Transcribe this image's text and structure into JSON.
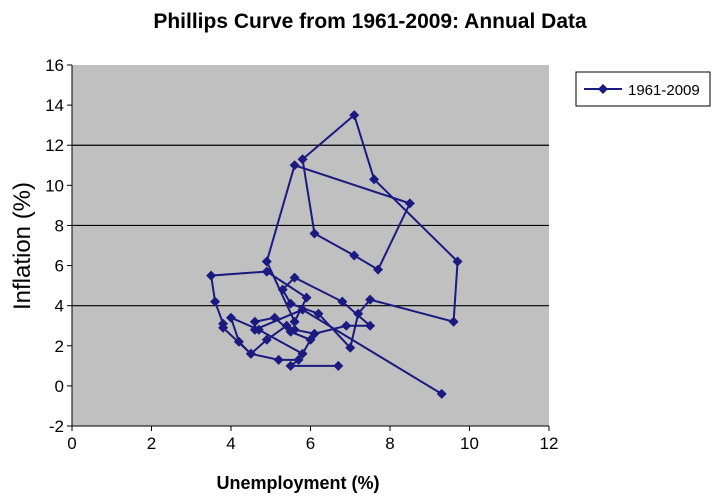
{
  "chart_data": {
    "type": "line",
    "title": "Phillips Curve from 1961-2009: Annual Data",
    "xlabel": "Unemployment (%)",
    "ylabel": "Inflation (%)",
    "xlim": [
      0,
      12
    ],
    "ylim": [
      -2,
      16
    ],
    "xticks": [
      "0",
      "2",
      "4",
      "6",
      "8",
      "10",
      "12"
    ],
    "yticks": [
      "-2",
      "0",
      "2",
      "4",
      "6",
      "8",
      "10",
      "12",
      "14",
      "16"
    ],
    "gridlines_y": [
      4,
      8,
      12
    ],
    "legend_position": "right",
    "series": [
      {
        "name": "1961-2009",
        "color": "#1a1a80",
        "marker": "diamond",
        "points": [
          [
            6.7,
            1.0
          ],
          [
            5.5,
            1.0
          ],
          [
            5.7,
            1.3
          ],
          [
            5.2,
            1.3
          ],
          [
            4.5,
            1.6
          ],
          [
            3.8,
            2.9
          ],
          [
            3.8,
            3.1
          ],
          [
            3.6,
            4.2
          ],
          [
            3.5,
            5.5
          ],
          [
            4.9,
            5.7
          ],
          [
            5.9,
            4.4
          ],
          [
            5.6,
            3.2
          ],
          [
            4.9,
            6.2
          ],
          [
            5.6,
            11.0
          ],
          [
            8.5,
            9.1
          ],
          [
            7.7,
            5.8
          ],
          [
            7.1,
            6.5
          ],
          [
            6.1,
            7.6
          ],
          [
            5.8,
            11.3
          ],
          [
            7.1,
            13.5
          ],
          [
            7.6,
            10.3
          ],
          [
            9.7,
            6.2
          ],
          [
            9.6,
            3.2
          ],
          [
            7.5,
            4.3
          ],
          [
            7.2,
            3.6
          ],
          [
            7.0,
            1.9
          ],
          [
            6.2,
            3.6
          ],
          [
            5.5,
            4.1
          ],
          [
            5.3,
            4.8
          ],
          [
            5.6,
            5.4
          ],
          [
            6.8,
            4.2
          ],
          [
            7.5,
            3.0
          ],
          [
            6.9,
            3.0
          ],
          [
            6.1,
            2.6
          ],
          [
            5.6,
            2.8
          ],
          [
            5.4,
            3.0
          ],
          [
            4.9,
            2.3
          ],
          [
            4.5,
            1.6
          ],
          [
            4.2,
            2.2
          ],
          [
            4.0,
            3.4
          ],
          [
            4.7,
            2.8
          ],
          [
            5.8,
            1.6
          ],
          [
            6.0,
            2.3
          ],
          [
            5.5,
            2.7
          ],
          [
            5.1,
            3.4
          ],
          [
            4.6,
            3.2
          ],
          [
            4.6,
            2.8
          ],
          [
            5.8,
            3.8
          ],
          [
            9.3,
            -0.4
          ]
        ]
      }
    ]
  }
}
